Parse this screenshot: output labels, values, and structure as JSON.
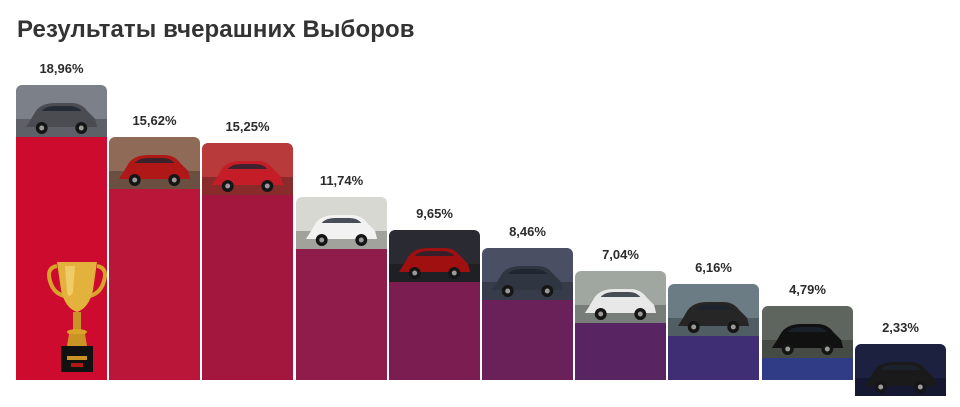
{
  "title": "Результаты вчерашних Выборов",
  "chart_data": {
    "type": "bar",
    "title": "Результаты вчерашних Выборов",
    "categories": [
      "",
      "",
      "",
      "",
      "",
      "",
      "",
      "",
      "",
      ""
    ],
    "values": [
      18.96,
      15.62,
      15.25,
      11.74,
      9.65,
      8.46,
      7.04,
      6.16,
      4.79,
      2.33
    ],
    "value_labels": [
      "18,96%",
      "15,62%",
      "15,25%",
      "11,74%",
      "9,65%",
      "8,46%",
      "7,04%",
      "6,16%",
      "4,79%",
      "2,33%"
    ],
    "bar_colors": [
      "#cc0b2f",
      "#b9163a",
      "#a3173e",
      "#8f1c4a",
      "#7c1d52",
      "#6a215a",
      "#582461",
      "#3f2e74",
      "#303c85",
      "#2b4a93"
    ],
    "photo_icons": [
      "car-photo-icon",
      "car-photo-icon",
      "car-photo-icon",
      "car-photo-icon",
      "car-photo-icon",
      "car-photo-icon",
      "car-photo-icon",
      "car-photo-icon",
      "car-photo-icon",
      "car-photo-icon"
    ],
    "photo_tones": [
      "#7c8088",
      "#8f6b57",
      "#b83a3a",
      "#d8d8d2",
      "#2a2a33",
      "#4a4f63",
      "#9fa7a0",
      "#6b7c84",
      "#5e655e",
      "#1c2140"
    ],
    "car_colors": [
      "#4a4c52",
      "#b01818",
      "#c41d28",
      "#f2f2f2",
      "#a01010",
      "#303641",
      "#e8e8e8",
      "#262626",
      "#111111",
      "#1a1a1a"
    ],
    "ylim": [
      0,
      20
    ],
    "grid": false,
    "legend": "none",
    "winner_icon": "trophy-icon"
  }
}
